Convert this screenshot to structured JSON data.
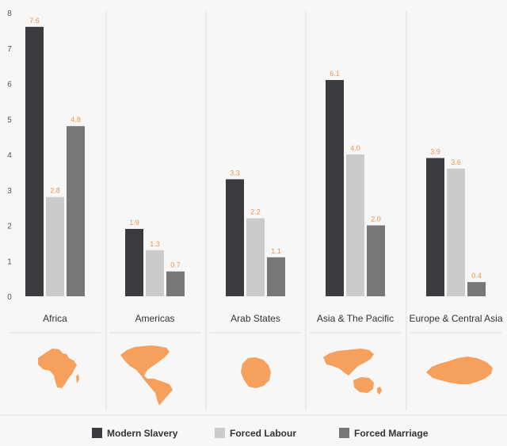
{
  "chart_data": {
    "type": "bar",
    "categories": [
      "Africa",
      "Americas",
      "Arab States",
      "Asia & The Pacific",
      "Europe & Central Asia"
    ],
    "series": [
      {
        "name": "Modern Slavery",
        "values": [
          7.6,
          1.9,
          3.3,
          6.1,
          3.9
        ],
        "color": "#3b3a3f"
      },
      {
        "name": "Forced Labour",
        "values": [
          2.8,
          1.3,
          2.2,
          4.0,
          3.6
        ],
        "color": "#cbcbcb"
      },
      {
        "name": "Forced Marriage",
        "values": [
          4.8,
          0.7,
          1.1,
          2.0,
          0.4
        ],
        "color": "#787678"
      }
    ],
    "yticks": [
      "0",
      "1",
      "2",
      "3",
      "4",
      "5",
      "6",
      "7",
      "8"
    ],
    "ylim": [
      0,
      8
    ],
    "value_labels": [
      [
        "7.6",
        "2.8",
        "4.8"
      ],
      [
        "1.9",
        "1.3",
        "0.7"
      ],
      [
        "3.3",
        "2.2",
        "1.1"
      ],
      [
        "6.1",
        "4.0",
        "2.0"
      ],
      [
        "3.9",
        "3.6",
        "0.4"
      ]
    ],
    "value_label_color": "#f0924e",
    "map_color": "#f5a15d",
    "grid": false,
    "legend_position": "bottom"
  }
}
